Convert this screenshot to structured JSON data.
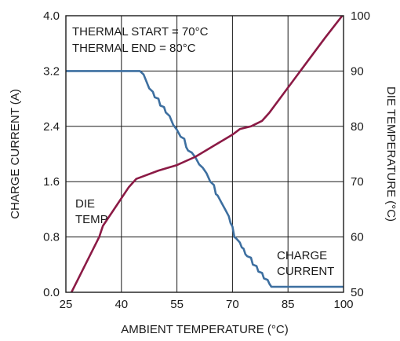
{
  "chart_data": {
    "type": "line",
    "xlabel": "AMBIENT TEMPERATURE (°C)",
    "ylabel_left": "CHARGE CURRENT (A)",
    "ylabel_right": "DIE TEMPERATURE (°C)",
    "xlim": [
      25,
      100
    ],
    "ylim_left": [
      0,
      4
    ],
    "ylim_right": [
      50,
      100
    ],
    "x_ticks": [
      25,
      40,
      55,
      70,
      85,
      100
    ],
    "y_left_ticks": [
      "0.0",
      "0.8",
      "1.6",
      "2.4",
      "3.2",
      "4.0"
    ],
    "y_right_ticks": [
      50,
      60,
      70,
      80,
      90,
      100
    ],
    "grid": true,
    "annotations": {
      "thermal_start": "THERMAL START = 70°C",
      "thermal_end": "THERMAL END = 80°C",
      "die_temp_line1": "DIE",
      "die_temp_line2": "TEMP",
      "charge_current_line1": "CHARGE",
      "charge_current_line2": "CURRENT"
    },
    "colors": {
      "charge_current": "#3d6fa0",
      "die_temp": "#8b1a45",
      "grid": "#1a1a1a"
    },
    "series": [
      {
        "key": "charge_current",
        "axis": "left",
        "points": [
          [
            25,
            3.2
          ],
          [
            45,
            3.2
          ],
          [
            46,
            3.15
          ],
          [
            47.5,
            2.95
          ],
          [
            48.5,
            2.9
          ],
          [
            49,
            2.82
          ],
          [
            50,
            2.8
          ],
          [
            50.5,
            2.7
          ],
          [
            51.5,
            2.68
          ],
          [
            52,
            2.6
          ],
          [
            53,
            2.55
          ],
          [
            54,
            2.42
          ],
          [
            55,
            2.35
          ],
          [
            56,
            2.25
          ],
          [
            57,
            2.22
          ],
          [
            57.5,
            2.1
          ],
          [
            58,
            2.05
          ],
          [
            59,
            2.02
          ],
          [
            60,
            1.95
          ],
          [
            61,
            1.85
          ],
          [
            62,
            1.8
          ],
          [
            63,
            1.72
          ],
          [
            64,
            1.6
          ],
          [
            65,
            1.55
          ],
          [
            65.5,
            1.42
          ],
          [
            66,
            1.4
          ],
          [
            67,
            1.3
          ],
          [
            68,
            1.2
          ],
          [
            69,
            1.1
          ],
          [
            69.5,
            1.0
          ],
          [
            70,
            0.95
          ],
          [
            70.5,
            0.8
          ],
          [
            71,
            0.78
          ],
          [
            72,
            0.72
          ],
          [
            72.5,
            0.65
          ],
          [
            73,
            0.63
          ],
          [
            73.5,
            0.55
          ],
          [
            74,
            0.52
          ],
          [
            75,
            0.5
          ],
          [
            75.5,
            0.4
          ],
          [
            76.5,
            0.38
          ],
          [
            77,
            0.3
          ],
          [
            78,
            0.28
          ],
          [
            78.5,
            0.2
          ],
          [
            79.5,
            0.18
          ],
          [
            80,
            0.12
          ],
          [
            80.5,
            0.08
          ],
          [
            100,
            0.08
          ]
        ]
      },
      {
        "key": "die_temp",
        "axis": "right",
        "points": [
          [
            25,
            48
          ],
          [
            28,
            52
          ],
          [
            31,
            56
          ],
          [
            34,
            60
          ],
          [
            35,
            62
          ],
          [
            38,
            65
          ],
          [
            42,
            69
          ],
          [
            44,
            70.5
          ],
          [
            46,
            71
          ],
          [
            50,
            72
          ],
          [
            55,
            73
          ],
          [
            60,
            74.5
          ],
          [
            65,
            76.5
          ],
          [
            70,
            78.5
          ],
          [
            72,
            79.5
          ],
          [
            75,
            80
          ],
          [
            78,
            81
          ],
          [
            80,
            82.5
          ],
          [
            85,
            87
          ],
          [
            90,
            91.5
          ],
          [
            95,
            96
          ],
          [
            100,
            100.3
          ]
        ]
      }
    ]
  }
}
